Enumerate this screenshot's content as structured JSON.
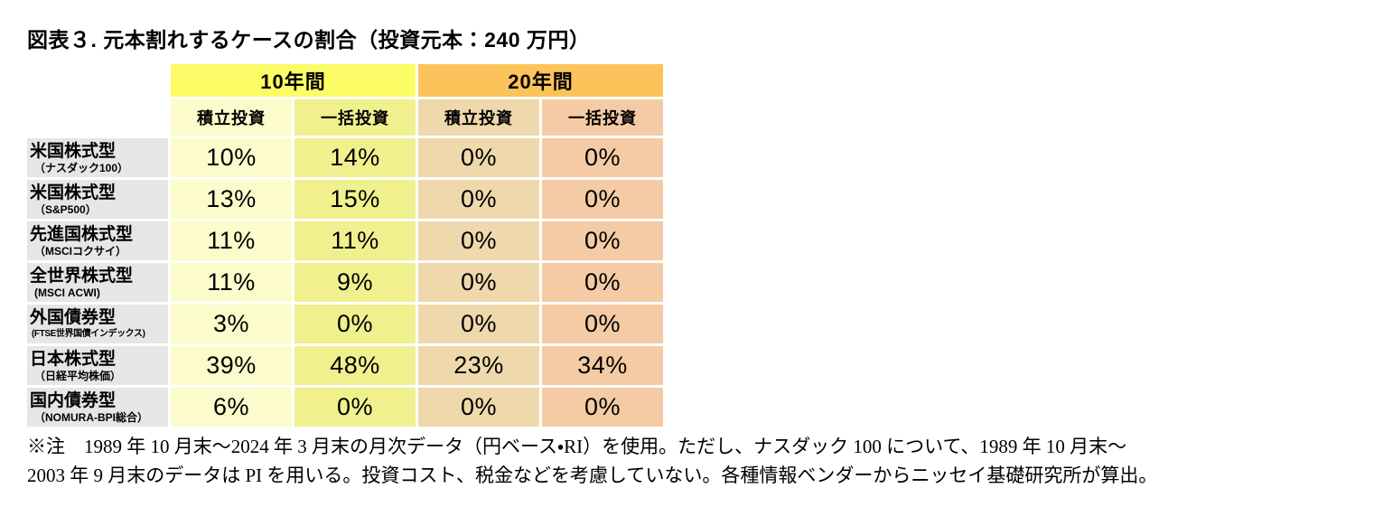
{
  "figure": {
    "title": "図表３. 元本割れするケースの割合（投資元本：240 万円）"
  },
  "table": {
    "col_groups": [
      "10年間",
      "20年間"
    ],
    "sub_headers": [
      "積立投資",
      "一括投資",
      "積立投資",
      "一括投資"
    ],
    "rows": [
      {
        "label": "米国株式型",
        "sublabel": "（ナスダック100）",
        "values": [
          "10%",
          "14%",
          "0%",
          "0%"
        ]
      },
      {
        "label": "米国株式型",
        "sublabel": "（S&P500）",
        "values": [
          "13%",
          "15%",
          "0%",
          "0%"
        ]
      },
      {
        "label": "先進国株式型",
        "sublabel": "（MSCIコクサイ）",
        "values": [
          "11%",
          "11%",
          "0%",
          "0%"
        ]
      },
      {
        "label": "全世界株式型",
        "sublabel": "(MSCI ACWI)",
        "values": [
          "11%",
          "9%",
          "0%",
          "0%"
        ]
      },
      {
        "label": "外国債券型",
        "sublabel": "(FTSE世界国債インデックス)",
        "values": [
          "3%",
          "0%",
          "0%",
          "0%"
        ]
      },
      {
        "label": "日本株式型",
        "sublabel": "（日経平均株価）",
        "values": [
          "39%",
          "48%",
          "23%",
          "34%"
        ]
      },
      {
        "label": "国内債券型",
        "sublabel": "（NOMURA-BPI総合）",
        "values": [
          "6%",
          "0%",
          "0%",
          "0%"
        ]
      }
    ]
  },
  "colors": {
    "group_header_10yr": "#FCFC66",
    "group_header_20yr": "#FBC35A",
    "col_tsumitate_10yr": "#FBFBCC",
    "col_ikkatsu_10yr": "#F0F08F",
    "col_tsumitate_20yr": "#EFD8AC",
    "col_ikkatsu_20yr": "#F4CBA4",
    "row_label_bg": "#E6E6E6",
    "grid_line": "#FFFFFF",
    "text": "#000000"
  },
  "notes": {
    "line1": "※注　1989 年 10 月末～2024 年 3 月末の月次データ（円ベース・RI）を使用。ただし、ナスダック 100 について、1989 年 10 月末～",
    "line2": "2003 年 9 月末のデータは PI を用いる。投資コスト、税金などを考慮していない。各種情報ベンダーからニッセイ基礎研究所が算出。"
  },
  "chart_data": {
    "type": "table",
    "title": "図表３. 元本割れするケースの割合（投資元本：240 万円）",
    "unit": "%",
    "column_groups": [
      {
        "label": "10年間",
        "columns": [
          "積立投資",
          "一括投資"
        ]
      },
      {
        "label": "20年間",
        "columns": [
          "積立投資",
          "一括投資"
        ]
      }
    ],
    "rows": [
      {
        "category": "米国株式型（ナスダック100）",
        "values_pct": [
          10,
          14,
          0,
          0
        ]
      },
      {
        "category": "米国株式型（S&P500）",
        "values_pct": [
          13,
          15,
          0,
          0
        ]
      },
      {
        "category": "先進国株式型（MSCIコクサイ）",
        "values_pct": [
          11,
          11,
          0,
          0
        ]
      },
      {
        "category": "全世界株式型（MSCI ACWI）",
        "values_pct": [
          11,
          9,
          0,
          0
        ]
      },
      {
        "category": "外国債券型（FTSE世界国債インデックス）",
        "values_pct": [
          3,
          0,
          0,
          0
        ]
      },
      {
        "category": "日本株式型（日経平均株価）",
        "values_pct": [
          39,
          48,
          23,
          34
        ]
      },
      {
        "category": "国内債券型（NOMURA-BPI総合）",
        "values_pct": [
          6,
          0,
          0,
          0
        ]
      }
    ],
    "note": "※注　1989 年 10 月末～2024 年 3 月末の月次データ（円ベース・RI）を使用。ただし、ナスダック 100 について、1989 年 10 月末～2003 年 9 月末のデータは PI を用いる。投資コスト、税金などを考慮していない。各種情報ベンダーからニッセイ基礎研究所が算出。"
  }
}
